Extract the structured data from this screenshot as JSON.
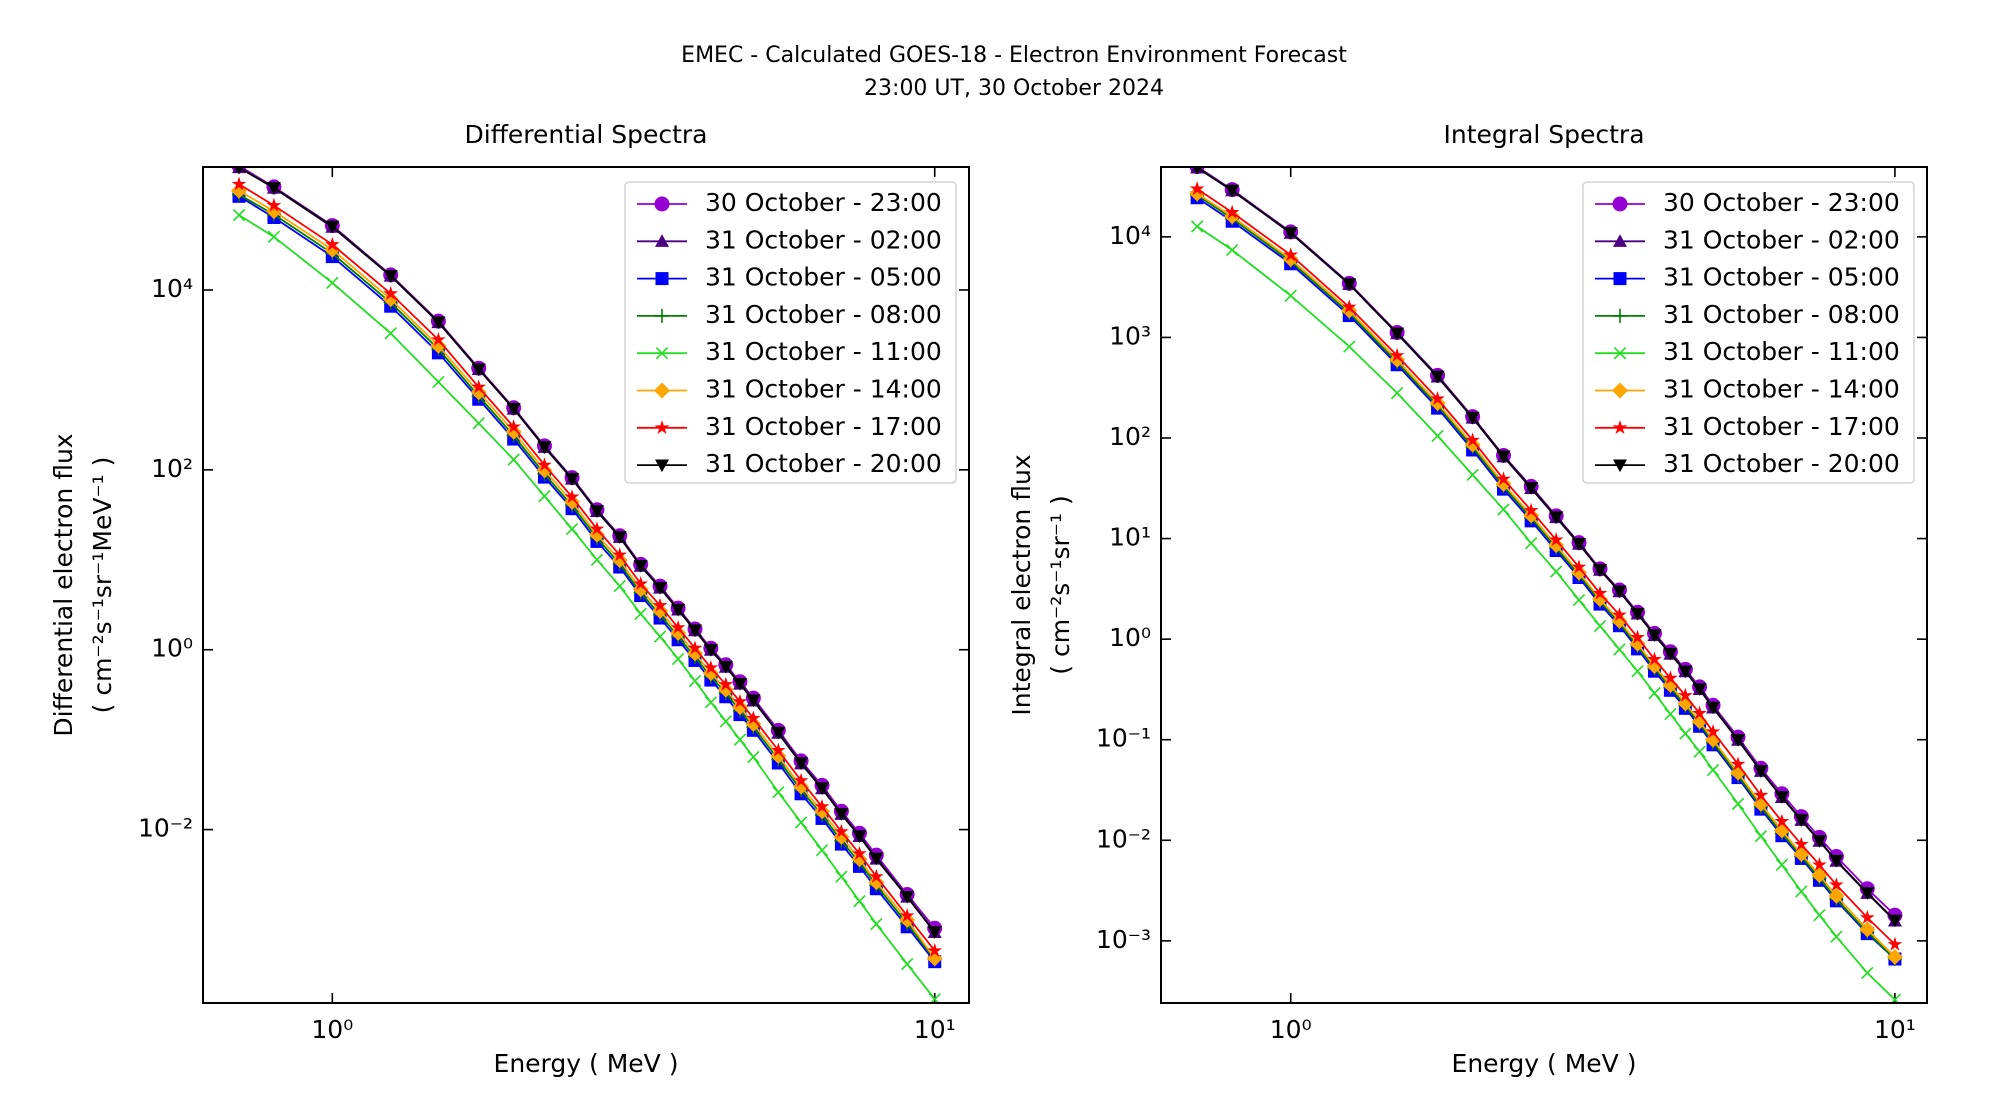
{
  "title": "EMEC - Calculated GOES-18 - Electron Environment Forecast",
  "subtitle": "23:00 UT, 30 October 2024",
  "chart_data": [
    {
      "type": "line",
      "title": "Differential Spectra",
      "xlabel": "Energy ( MeV )",
      "ylabel": [
        "Differential electron flux",
        "( cm⁻²s⁻¹sr⁻¹MeV⁻¹ )"
      ],
      "xscale": "log",
      "yscale": "log",
      "legend": "upper right",
      "xlim": [
        0.61,
        11.4
      ],
      "ylim": [
        0.000118,
        233000
      ],
      "xticks": [
        {
          "value": 1,
          "label": "10⁰"
        },
        {
          "value": 10,
          "label": "10¹"
        }
      ],
      "yticks": [
        {
          "value": 10000,
          "label": "10⁴"
        },
        {
          "value": 100,
          "label": "10²"
        },
        {
          "value": 1,
          "label": "10⁰"
        },
        {
          "value": 0.01,
          "label": "10⁻²"
        }
      ],
      "x": [
        0.7,
        0.8,
        1.0,
        1.25,
        1.5,
        1.75,
        2.0,
        2.25,
        2.5,
        2.75,
        3.0,
        3.25,
        3.5,
        3.75,
        4.0,
        4.25,
        4.5,
        4.75,
        5.0,
        5.5,
        6.0,
        6.5,
        7.0,
        7.5,
        8.0,
        9.0,
        10.0
      ],
      "series": [
        {
          "name": "30 October - 23:00",
          "color": "#9400d3",
          "marker": "o",
          "values": [
            240000,
            140000,
            52000,
            14700,
            4500,
            1350,
            490,
            185,
            82,
            36,
            18.5,
            8.9,
            5.1,
            2.9,
            1.7,
            1.04,
            0.68,
            0.44,
            0.29,
            0.127,
            0.058,
            0.031,
            0.016,
            0.0091,
            0.0052,
            0.0019,
            0.0008
          ]
        },
        {
          "name": "31 October - 02:00",
          "color": "#4b0082",
          "marker": "^",
          "values": [
            230000,
            136000,
            50000,
            14300,
            4350,
            1310,
            475,
            178,
            79,
            34.5,
            17.8,
            8.5,
            4.85,
            2.77,
            1.63,
            0.99,
            0.64,
            0.415,
            0.27,
            0.118,
            0.054,
            0.0285,
            0.0148,
            0.0084,
            0.0047,
            0.00178,
            0.00072
          ]
        },
        {
          "name": "31 October - 05:00",
          "color": "#0000ff",
          "marker": "s",
          "values": [
            110000,
            64000,
            23500,
            6600,
            2000,
            610,
            220,
            83,
            37,
            16,
            8.3,
            4.0,
            2.25,
            1.29,
            0.76,
            0.46,
            0.3,
            0.19,
            0.127,
            0.055,
            0.025,
            0.0133,
            0.0069,
            0.0039,
            0.0022,
            0.00083,
            0.00034
          ]
        },
        {
          "name": "31 October - 08:00",
          "color": "#008000",
          "marker": "+",
          "values": [
            115000,
            69000,
            25500,
            7200,
            2200,
            660,
            240,
            90,
            40,
            17.5,
            9.0,
            4.3,
            2.45,
            1.4,
            0.83,
            0.5,
            0.33,
            0.21,
            0.138,
            0.06,
            0.0275,
            0.0145,
            0.0075,
            0.0043,
            0.0024,
            0.0009,
            0.00036
          ]
        },
        {
          "name": "31 October - 11:00",
          "color": "#22dd22",
          "marker": "x",
          "values": [
            68000,
            39000,
            12000,
            3300,
            950,
            330,
            130,
            51,
            22,
            10,
            5.1,
            2.5,
            1.4,
            0.79,
            0.45,
            0.26,
            0.16,
            0.1,
            0.064,
            0.026,
            0.012,
            0.0059,
            0.003,
            0.0016,
            0.00089,
            0.00032,
            0.00013
          ]
        },
        {
          "name": "31 October - 14:00",
          "color": "#ffa500",
          "marker": "D",
          "values": [
            127000,
            75000,
            28000,
            7900,
            2400,
            730,
            265,
            99,
            44,
            19,
            9.9,
            4.7,
            2.7,
            1.54,
            0.91,
            0.55,
            0.36,
            0.23,
            0.15,
            0.066,
            0.03,
            0.016,
            0.0083,
            0.0047,
            0.0026,
            0.00099,
            0.00037
          ]
        },
        {
          "name": "31 October - 17:00",
          "color": "#ff0000",
          "marker": "*",
          "values": [
            150000,
            87000,
            32000,
            9100,
            2800,
            830,
            300,
            113,
            50,
            22,
            11.3,
            5.4,
            3.1,
            1.76,
            1.04,
            0.63,
            0.41,
            0.265,
            0.173,
            0.076,
            0.035,
            0.018,
            0.0095,
            0.0054,
            0.003,
            0.0011,
            0.00045
          ]
        },
        {
          "name": "31 October - 20:00",
          "color": "#000000",
          "marker": "v",
          "values": [
            230000,
            137000,
            51000,
            14400,
            4400,
            1320,
            480,
            180,
            80,
            35,
            18,
            8.6,
            4.9,
            2.8,
            1.65,
            1.0,
            0.65,
            0.42,
            0.275,
            0.12,
            0.055,
            0.029,
            0.015,
            0.0085,
            0.0048,
            0.0018,
            0.00073
          ]
        }
      ]
    },
    {
      "type": "line",
      "title": "Integral Spectra",
      "xlabel": "Energy ( MeV )",
      "ylabel": [
        "Integral electron flux",
        "( cm⁻²s⁻¹sr⁻¹ )"
      ],
      "xscale": "log",
      "yscale": "log",
      "legend": "upper right",
      "xlim": [
        0.61,
        11.3
      ],
      "ylim": [
        0.000241,
        49500
      ],
      "xticks": [
        {
          "value": 1,
          "label": "10⁰"
        },
        {
          "value": 10,
          "label": "10¹"
        }
      ],
      "yticks": [
        {
          "value": 10000,
          "label": "10⁴"
        },
        {
          "value": 1000,
          "label": "10³"
        },
        {
          "value": 100,
          "label": "10²"
        },
        {
          "value": 10,
          "label": "10¹"
        },
        {
          "value": 1,
          "label": "10⁰"
        },
        {
          "value": 0.1,
          "label": "10⁻¹"
        },
        {
          "value": 0.01,
          "label": "10⁻²"
        },
        {
          "value": 0.001,
          "label": "10⁻³"
        }
      ],
      "x": [
        0.7,
        0.8,
        1.0,
        1.25,
        1.5,
        1.75,
        2.0,
        2.25,
        2.5,
        2.75,
        3.0,
        3.25,
        3.5,
        3.75,
        4.0,
        4.25,
        4.5,
        4.75,
        5.0,
        5.5,
        6.0,
        6.5,
        7.0,
        7.5,
        8.0,
        9.0,
        10.0
      ],
      "series": [
        {
          "name": "30 October - 23:00",
          "color": "#9400d3",
          "marker": "o",
          "values": [
            50000,
            29500,
            11200,
            3450,
            1120,
            420,
            163,
            67,
            33,
            16.8,
            9.1,
            5.0,
            3.08,
            1.85,
            1.14,
            0.75,
            0.5,
            0.335,
            0.22,
            0.106,
            0.052,
            0.029,
            0.0172,
            0.0107,
            0.0069,
            0.0033,
            0.0018
          ]
        },
        {
          "name": "31 October - 02:00",
          "color": "#4b0082",
          "marker": "^",
          "values": [
            48500,
            28800,
            10900,
            3370,
            1090,
            405,
            158,
            65,
            31.5,
            16.2,
            8.8,
            4.85,
            2.97,
            1.78,
            1.09,
            0.71,
            0.475,
            0.316,
            0.207,
            0.099,
            0.0485,
            0.0267,
            0.0158,
            0.0098,
            0.0062,
            0.00297,
            0.00158
          ]
        },
        {
          "name": "31 October - 05:00",
          "color": "#0000ff",
          "marker": "s",
          "values": [
            24500,
            14300,
            5400,
            1650,
            535,
            198,
            76,
            31,
            15,
            7.6,
            4.1,
            2.23,
            1.36,
            0.8,
            0.48,
            0.31,
            0.205,
            0.136,
            0.089,
            0.042,
            0.0204,
            0.0111,
            0.0066,
            0.004,
            0.0025,
            0.00118,
            0.00066
          ]
        },
        {
          "name": "31 October - 08:00",
          "color": "#008000",
          "marker": "+",
          "values": [
            26000,
            15200,
            5700,
            1750,
            565,
            210,
            81,
            33,
            16,
            8.1,
            4.35,
            2.37,
            1.44,
            0.85,
            0.51,
            0.33,
            0.218,
            0.144,
            0.094,
            0.044,
            0.0215,
            0.0117,
            0.0069,
            0.0042,
            0.0026,
            0.00122,
            0.00066
          ]
        },
        {
          "name": "31 October - 11:00",
          "color": "#22dd22",
          "marker": "x",
          "values": [
            12700,
            7400,
            2600,
            810,
            280,
            105,
            43,
            19.5,
            9.0,
            4.7,
            2.45,
            1.35,
            0.79,
            0.48,
            0.29,
            0.18,
            0.115,
            0.076,
            0.05,
            0.023,
            0.011,
            0.0057,
            0.0031,
            0.0018,
            0.0011,
            0.00048,
            0.00026
          ]
        },
        {
          "name": "31 October - 14:00",
          "color": "#ffa500",
          "marker": "D",
          "values": [
            27000,
            16000,
            6000,
            1850,
            600,
            222,
            86,
            35,
            17,
            8.6,
            4.6,
            2.5,
            1.52,
            0.9,
            0.54,
            0.35,
            0.23,
            0.152,
            0.1,
            0.047,
            0.023,
            0.0125,
            0.0073,
            0.0045,
            0.0028,
            0.0013,
            0.00069
          ]
        },
        {
          "name": "31 October - 17:00",
          "color": "#ff0000",
          "marker": "*",
          "values": [
            30000,
            17500,
            6600,
            2000,
            660,
            245,
            95,
            39,
            19,
            9.7,
            5.2,
            2.85,
            1.74,
            1.04,
            0.63,
            0.41,
            0.275,
            0.183,
            0.12,
            0.057,
            0.028,
            0.0154,
            0.0091,
            0.0057,
            0.0036,
            0.0017,
            0.00092
          ]
        },
        {
          "name": "31 October - 20:00",
          "color": "#000000",
          "marker": "v",
          "values": [
            49000,
            29000,
            11000,
            3400,
            1100,
            410,
            160,
            66,
            32,
            16.4,
            8.9,
            4.9,
            3.0,
            1.8,
            1.1,
            0.72,
            0.48,
            0.32,
            0.21,
            0.1,
            0.049,
            0.027,
            0.016,
            0.0099,
            0.0063,
            0.003,
            0.0016
          ]
        }
      ]
    }
  ]
}
